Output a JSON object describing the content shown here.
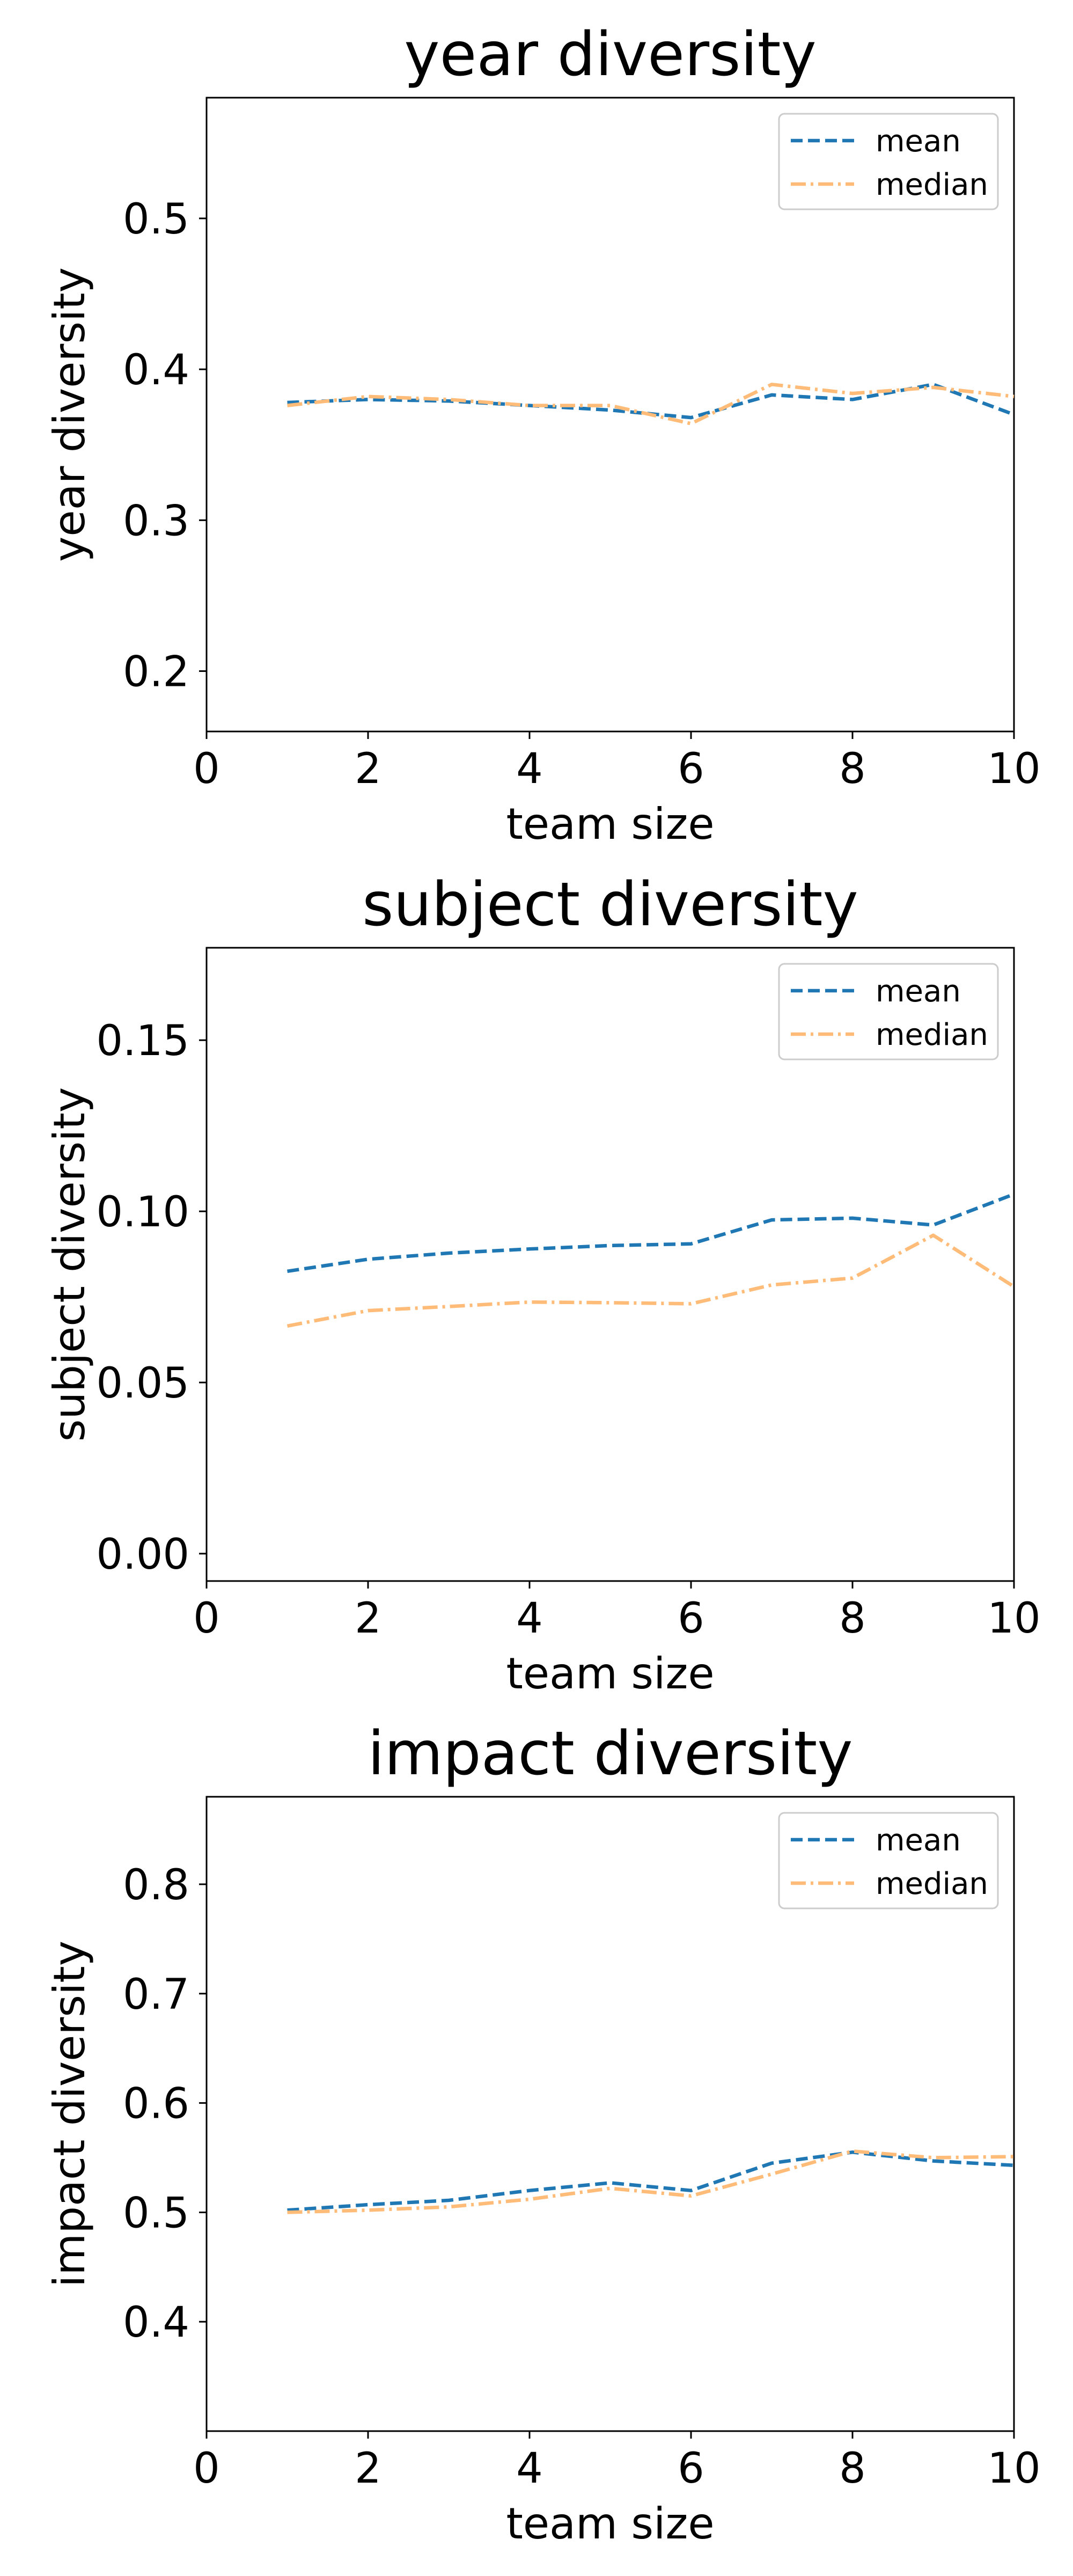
{
  "chart_data": [
    {
      "type": "line",
      "title": "year diversity",
      "xlabel": "team size",
      "ylabel": "year diversity",
      "xlim": [
        0,
        10
      ],
      "ylim": [
        0.16,
        0.58
      ],
      "xticks": [
        0,
        2,
        4,
        6,
        8,
        10
      ],
      "xtick_labels": [
        "0",
        "2",
        "4",
        "6",
        "8",
        "10"
      ],
      "yticks": [
        0.2,
        0.3,
        0.4,
        0.5
      ],
      "ytick_labels": [
        "0.2",
        "0.3",
        "0.4",
        "0.5"
      ],
      "grid": false,
      "legend": "top-right",
      "x": [
        1,
        2,
        3,
        4,
        5,
        6,
        7,
        8,
        9,
        10
      ],
      "series": [
        {
          "name": "mean",
          "color": "#1f77b4",
          "dash": "dashed",
          "values": [
            0.378,
            0.38,
            0.379,
            0.376,
            0.373,
            0.368,
            0.383,
            0.38,
            0.39,
            0.37
          ]
        },
        {
          "name": "median",
          "color": "#ffbb78",
          "dash": "dashdot",
          "values": [
            0.376,
            0.382,
            0.38,
            0.376,
            0.376,
            0.364,
            0.39,
            0.384,
            0.388,
            0.382
          ]
        }
      ]
    },
    {
      "type": "line",
      "title": "subject diversity",
      "xlabel": "team size",
      "ylabel": "subject diversity",
      "xlim": [
        0,
        10
      ],
      "ylim": [
        -0.008,
        0.177
      ],
      "xticks": [
        0,
        2,
        4,
        6,
        8,
        10
      ],
      "xtick_labels": [
        "0",
        "2",
        "4",
        "6",
        "8",
        "10"
      ],
      "yticks": [
        0.0,
        0.05,
        0.1,
        0.15
      ],
      "ytick_labels": [
        "0.00",
        "0.05",
        "0.10",
        "0.15"
      ],
      "grid": false,
      "legend": "top-right",
      "x": [
        1,
        2,
        3,
        4,
        5,
        6,
        7,
        8,
        9,
        10
      ],
      "series": [
        {
          "name": "mean",
          "color": "#1f77b4",
          "dash": "dashed",
          "values": [
            0.0825,
            0.086,
            0.0878,
            0.089,
            0.09,
            0.0905,
            0.0975,
            0.098,
            0.096,
            0.105
          ]
        },
        {
          "name": "median",
          "color": "#ffbb78",
          "dash": "dashdot",
          "values": [
            0.0665,
            0.071,
            0.0722,
            0.0735,
            0.0733,
            0.073,
            0.0785,
            0.0805,
            0.093,
            0.078
          ]
        }
      ]
    },
    {
      "type": "line",
      "title": "impact diversity",
      "xlabel": "team size",
      "ylabel": "impact diversity",
      "xlim": [
        0,
        10
      ],
      "ylim": [
        0.3,
        0.88
      ],
      "xticks": [
        0,
        2,
        4,
        6,
        8,
        10
      ],
      "xtick_labels": [
        "0",
        "2",
        "4",
        "6",
        "8",
        "10"
      ],
      "yticks": [
        0.4,
        0.5,
        0.6,
        0.7,
        0.8
      ],
      "ytick_labels": [
        "0.4",
        "0.5",
        "0.6",
        "0.7",
        "0.8"
      ],
      "grid": false,
      "legend": "top-right",
      "x": [
        1,
        2,
        3,
        4,
        5,
        6,
        7,
        8,
        9,
        10
      ],
      "series": [
        {
          "name": "mean",
          "color": "#1f77b4",
          "dash": "dashed",
          "values": [
            0.502,
            0.507,
            0.511,
            0.52,
            0.527,
            0.52,
            0.545,
            0.555,
            0.547,
            0.543
          ]
        },
        {
          "name": "median",
          "color": "#ffbb78",
          "dash": "dashdot",
          "values": [
            0.5,
            0.502,
            0.505,
            0.512,
            0.522,
            0.515,
            0.535,
            0.556,
            0.55,
            0.551
          ]
        }
      ]
    }
  ]
}
